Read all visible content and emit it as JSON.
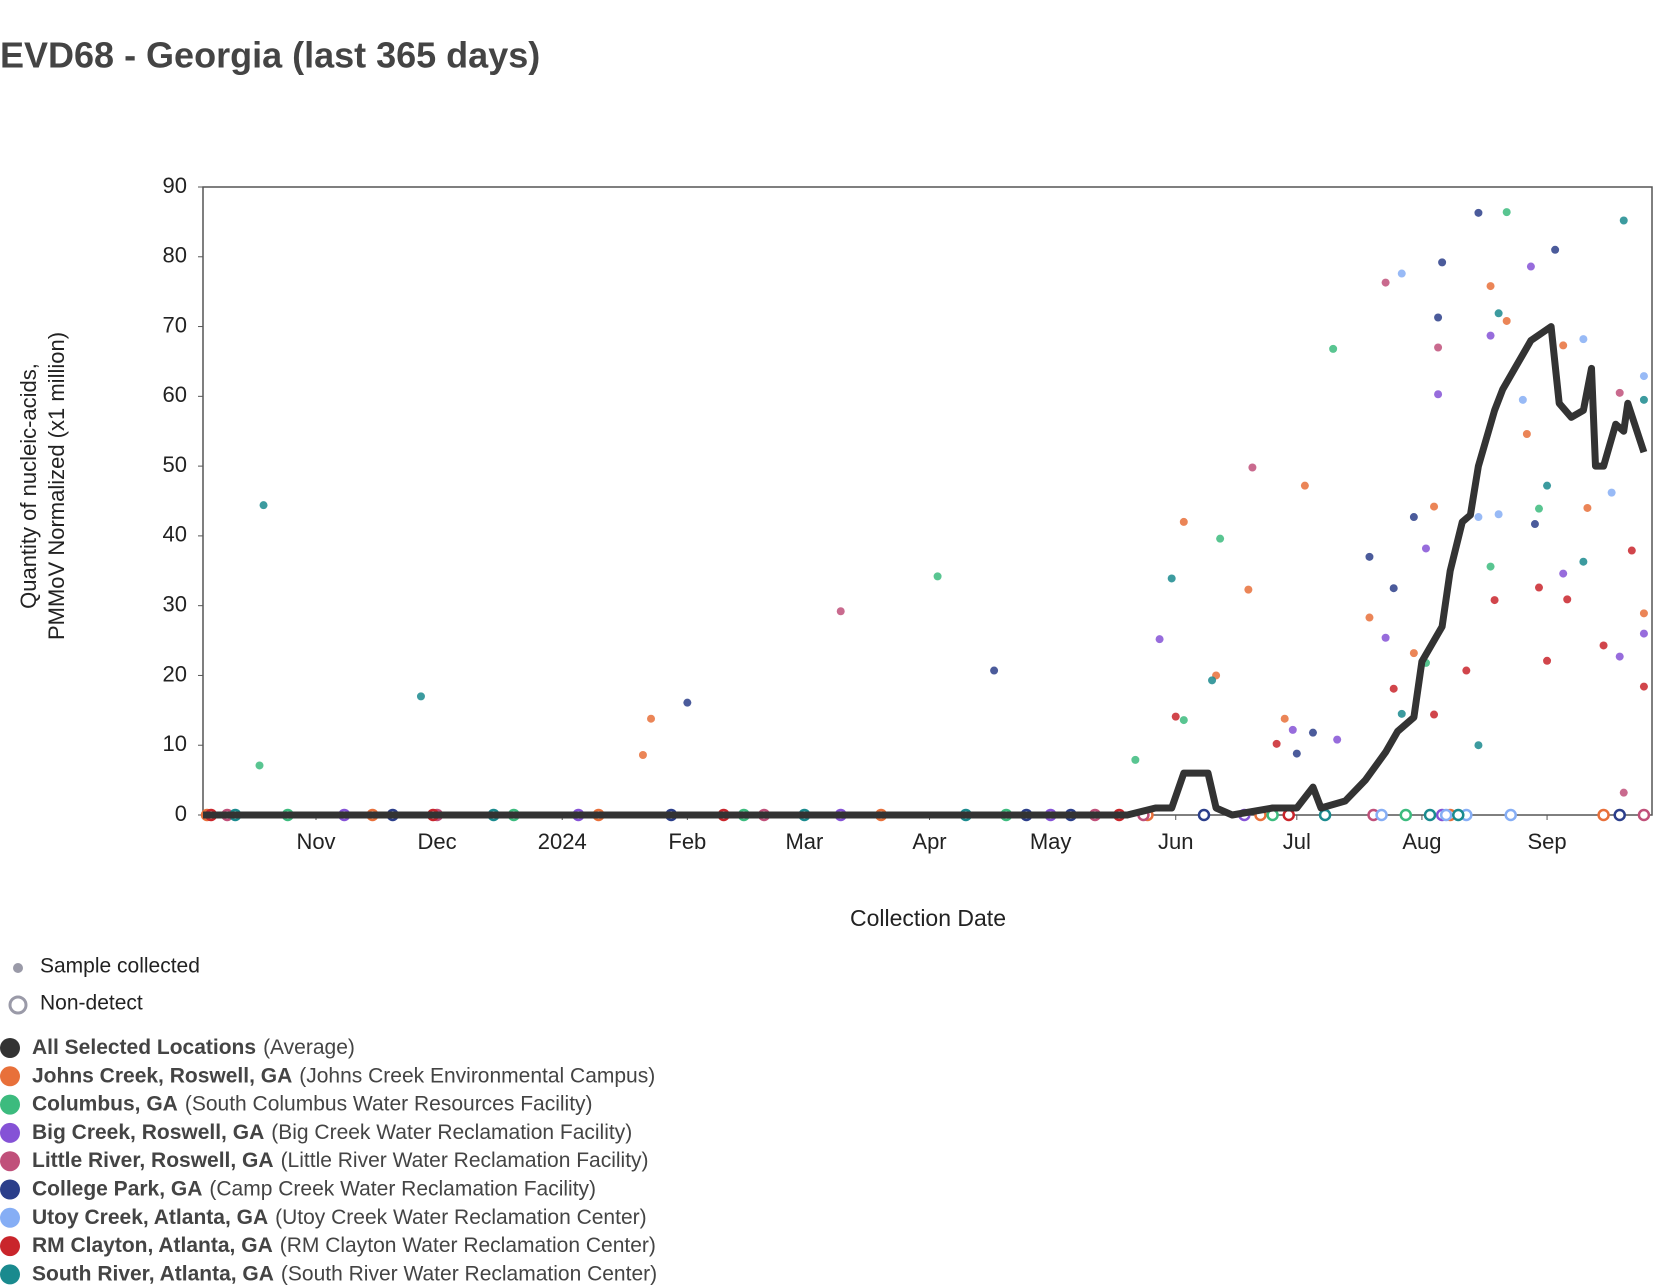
{
  "chart_data": {
    "type": "scatter",
    "title": "EVD68 - Georgia (last 365 days)",
    "xlabel": "Collection Date",
    "ylabel": [
      "Quantity of nucleic-acids,",
      "PMMoV Normalized (x1 million)"
    ],
    "xlim": [
      "2023-10-04",
      "2024-09-27"
    ],
    "xticks": [
      {
        "value": "2023-11-01",
        "label": "Nov"
      },
      {
        "value": "2023-12-01",
        "label": "Dec"
      },
      {
        "value": "2024-01-01",
        "label": "2024"
      },
      {
        "value": "2024-02-01",
        "label": "Feb"
      },
      {
        "value": "2024-03-01",
        "label": "Mar"
      },
      {
        "value": "2024-04-01",
        "label": "Apr"
      },
      {
        "value": "2024-05-01",
        "label": "May"
      },
      {
        "value": "2024-06-01",
        "label": "Jun"
      },
      {
        "value": "2024-07-01",
        "label": "Jul"
      },
      {
        "value": "2024-08-01",
        "label": "Aug"
      },
      {
        "value": "2024-09-01",
        "label": "Sep"
      }
    ],
    "ylim": [
      0,
      90
    ],
    "yticks": [
      0,
      10,
      20,
      30,
      40,
      50,
      60,
      70,
      80,
      90
    ],
    "grid": false,
    "legend_keys": {
      "sample": "Sample collected",
      "nondetect": "Non-detect"
    },
    "series": [
      {
        "name": "All Selected Locations",
        "detail": "(Average)",
        "color": "#333333",
        "mode": "line",
        "x": [
          "2023-10-04",
          "2024-05-20",
          "2024-05-27",
          "2024-05-31",
          "2024-06-03",
          "2024-06-09",
          "2024-06-11",
          "2024-06-15",
          "2024-06-25",
          "2024-07-01",
          "2024-07-05",
          "2024-07-07",
          "2024-07-13",
          "2024-07-18",
          "2024-07-23",
          "2024-07-26",
          "2024-07-30",
          "2024-08-01",
          "2024-08-03",
          "2024-08-06",
          "2024-08-08",
          "2024-08-11",
          "2024-08-13",
          "2024-08-15",
          "2024-08-19",
          "2024-08-21",
          "2024-08-24",
          "2024-08-28",
          "2024-09-02",
          "2024-09-04",
          "2024-09-07",
          "2024-09-10",
          "2024-09-12",
          "2024-09-13",
          "2024-09-15",
          "2024-09-18",
          "2024-09-20",
          "2024-09-21",
          "2024-09-25"
        ],
        "values": [
          0,
          0,
          1,
          1,
          6,
          6,
          1,
          0,
          1,
          1,
          4,
          1,
          2,
          5,
          9,
          12,
          14,
          22,
          24,
          27,
          35,
          42,
          43,
          50,
          58,
          61,
          64,
          68,
          70,
          59,
          57,
          58,
          64,
          50,
          50,
          56,
          55,
          59,
          52
        ]
      },
      {
        "name": "Johns Creek, Roswell, GA",
        "detail": "(Johns Creek Environmental Campus)",
        "color": "#e8703a",
        "mode": "markers",
        "x": [
          "2024-01-21",
          "2024-01-23",
          "2024-06-03",
          "2024-06-11",
          "2024-06-19",
          "2024-06-28",
          "2024-07-03",
          "2024-07-19",
          "2024-07-30",
          "2024-08-04",
          "2024-08-18",
          "2024-08-22",
          "2024-08-27",
          "2024-09-05",
          "2024-09-11",
          "2024-09-25",
          "2023-10-05",
          "2023-11-15",
          "2024-01-10",
          "2024-03-20",
          "2024-05-25",
          "2024-06-22",
          "2024-08-08",
          "2024-09-15"
        ],
        "values": [
          8.6,
          13.8,
          42,
          20,
          32.3,
          13.8,
          47.2,
          28.3,
          23.2,
          44.2,
          75.8,
          70.8,
          54.6,
          67.3,
          44,
          28.9,
          0,
          0,
          0,
          0,
          0,
          0,
          0,
          0
        ]
      },
      {
        "name": "Columbus, GA",
        "detail": "(South Columbus Water Resources Facility)",
        "color": "#3cbb7e",
        "mode": "markers",
        "x": [
          "2023-10-18",
          "2024-04-03",
          "2024-05-22",
          "2024-06-03",
          "2024-06-12",
          "2024-07-10",
          "2024-08-02",
          "2024-08-18",
          "2024-08-22",
          "2024-08-30",
          "2023-10-25",
          "2023-12-20",
          "2024-02-15",
          "2024-04-20",
          "2024-06-25",
          "2024-07-28"
        ],
        "values": [
          7.1,
          34.2,
          7.9,
          13.6,
          39.6,
          66.8,
          21.8,
          35.6,
          86.4,
          43.9,
          0,
          0,
          0,
          0,
          0,
          0
        ]
      },
      {
        "name": "Big Creek, Roswell, GA",
        "detail": "(Big Creek Water Reclamation Facility)",
        "color": "#8552d6",
        "mode": "markers",
        "x": [
          "2024-05-28",
          "2024-06-30",
          "2024-07-11",
          "2024-07-23",
          "2024-08-02",
          "2024-08-05",
          "2024-08-18",
          "2024-08-28",
          "2024-09-05",
          "2024-09-19",
          "2024-09-25",
          "2023-11-08",
          "2024-01-05",
          "2024-03-10",
          "2024-05-01",
          "2024-06-18",
          "2024-08-06"
        ],
        "values": [
          25.2,
          12.2,
          10.8,
          25.4,
          38.2,
          60.3,
          68.7,
          78.6,
          34.6,
          22.7,
          26,
          0,
          0,
          0,
          0,
          0,
          0
        ]
      },
      {
        "name": "Little River, Roswell, GA",
        "detail": "(Little River Water Reclamation Facility)",
        "color": "#c0507a",
        "mode": "markers",
        "x": [
          "2024-03-10",
          "2024-06-20",
          "2024-07-23",
          "2024-08-05",
          "2024-09-20",
          "2024-09-19",
          "2023-10-10",
          "2023-12-01",
          "2024-02-20",
          "2024-05-12",
          "2024-05-24",
          "2024-07-20",
          "2024-09-25"
        ],
        "values": [
          29.2,
          49.8,
          76.3,
          67,
          3.2,
          60.5,
          0,
          0,
          0,
          0,
          0,
          0,
          0
        ]
      },
      {
        "name": "College Park, GA",
        "detail": "(Camp Creek Water Reclamation Facility)",
        "color": "#2b3e8a",
        "mode": "markers",
        "x": [
          "2024-02-01",
          "2024-04-17",
          "2024-07-01",
          "2024-07-05",
          "2024-07-19",
          "2024-07-25",
          "2024-07-30",
          "2024-08-05",
          "2024-08-06",
          "2024-08-15",
          "2024-08-29",
          "2024-09-03",
          "2023-11-20",
          "2024-01-28",
          "2024-04-25",
          "2024-05-06",
          "2024-06-08",
          "2024-09-19"
        ],
        "values": [
          16.1,
          20.7,
          8.8,
          11.8,
          37,
          32.5,
          42.7,
          71.3,
          79.2,
          86.3,
          41.7,
          81,
          0,
          0,
          0,
          0,
          0,
          0
        ]
      },
      {
        "name": "Utoy Creek, Atlanta, GA",
        "detail": "(Utoy Creek Water Reclamation Center)",
        "color": "#86aef5",
        "mode": "markers",
        "x": [
          "2024-07-27",
          "2024-08-15",
          "2024-08-26",
          "2024-09-10",
          "2024-09-17",
          "2024-09-25",
          "2024-08-20",
          "2024-07-22",
          "2024-08-07",
          "2024-08-12",
          "2024-08-23"
        ],
        "values": [
          77.6,
          42.7,
          59.5,
          68.2,
          46.2,
          62.9,
          43.1,
          0,
          0,
          0,
          0
        ]
      },
      {
        "name": "RM Clayton, Atlanta, GA",
        "detail": "(RM Clayton Water Reclamation Center)",
        "color": "#c9252b",
        "mode": "markers",
        "x": [
          "2024-06-01",
          "2024-06-26",
          "2024-07-25",
          "2024-08-04",
          "2024-08-12",
          "2024-08-19",
          "2024-08-30",
          "2024-09-01",
          "2024-09-06",
          "2024-09-15",
          "2024-09-22",
          "2024-09-25",
          "2023-10-06",
          "2023-11-30",
          "2024-02-10",
          "2024-05-18",
          "2024-06-29"
        ],
        "values": [
          14.1,
          10.2,
          18.1,
          14.4,
          20.7,
          30.8,
          32.6,
          22.1,
          30.9,
          24.3,
          37.9,
          18.4,
          0,
          0,
          0,
          0,
          0
        ]
      },
      {
        "name": "South River, Atlanta, GA",
        "detail": "(South River Water Reclamation Center)",
        "color": "#1a8a8e",
        "mode": "markers",
        "x": [
          "2023-10-19",
          "2023-11-27",
          "2024-05-31",
          "2024-06-10",
          "2024-07-27",
          "2024-08-15",
          "2024-08-20",
          "2024-09-01",
          "2024-09-10",
          "2024-09-20",
          "2024-09-25",
          "2023-10-12",
          "2023-12-15",
          "2024-03-01",
          "2024-04-10",
          "2024-07-08",
          "2024-08-03",
          "2024-08-10"
        ],
        "values": [
          44.4,
          17,
          33.9,
          19.3,
          14.5,
          10,
          71.9,
          47.2,
          36.3,
          85.2,
          59.5,
          0,
          0,
          0,
          0,
          0,
          0,
          0
        ]
      }
    ]
  }
}
